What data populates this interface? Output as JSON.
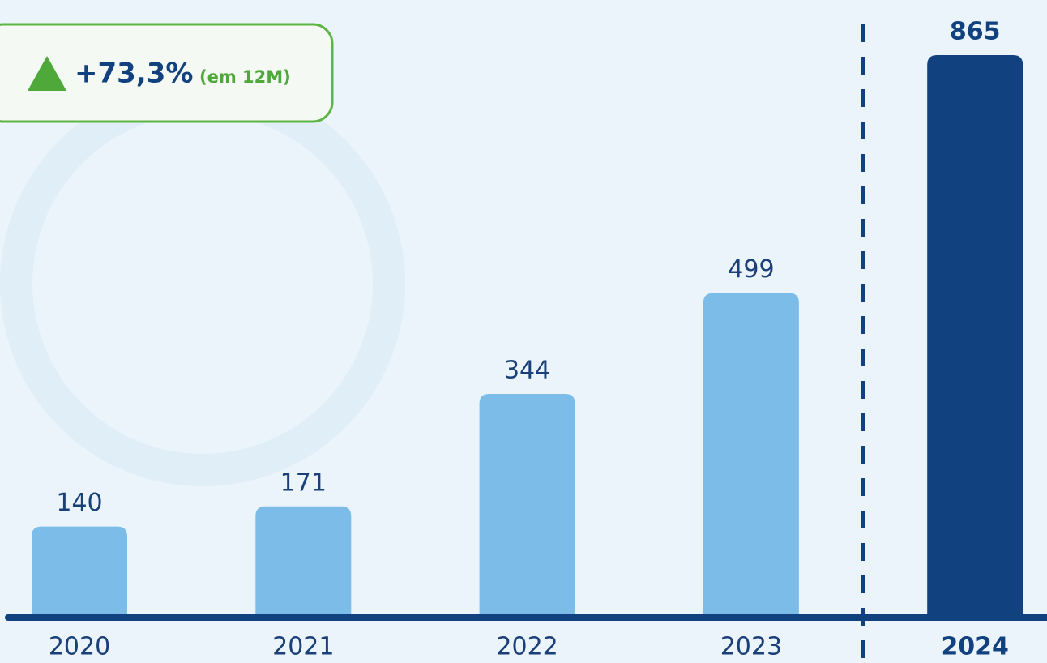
{
  "chart_data": {
    "type": "bar",
    "badge": {
      "change": "+73,3%",
      "period": "(em 12M)"
    },
    "categories": [
      "2020",
      "2021",
      "2022",
      "2023",
      "2024"
    ],
    "values": [
      140,
      171,
      344,
      499,
      865
    ],
    "colors": [
      "#7bbce8",
      "#7bbce8",
      "#7bbce8",
      "#7bbce8",
      "#12417f"
    ],
    "ylim": [
      0,
      865
    ]
  }
}
